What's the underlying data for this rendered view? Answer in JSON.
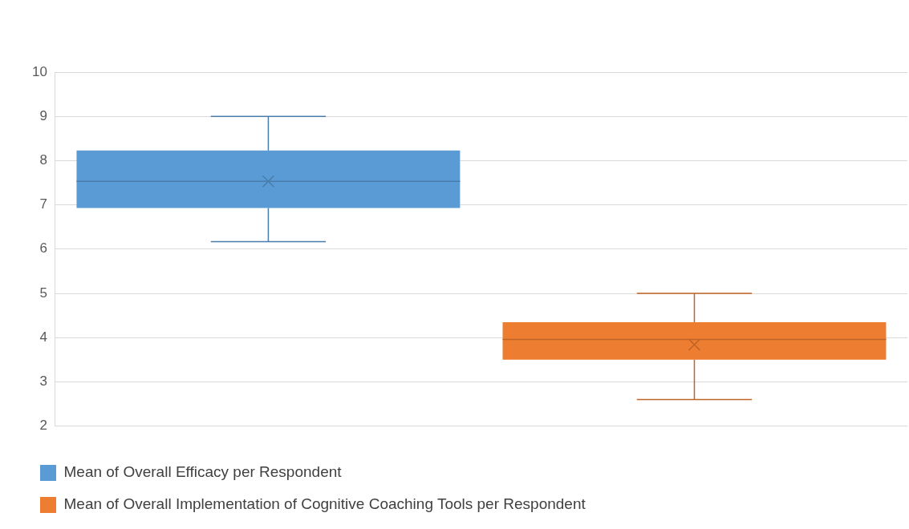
{
  "chart_data": {
    "type": "box",
    "categories": [
      null,
      null
    ],
    "series": [
      {
        "name": "Mean of Overall Efficacy per Respondent",
        "color": "#5b9bd5",
        "boxes": [
          {
            "low": 6.17,
            "q1": 6.93,
            "median": 7.53,
            "q3": 8.23,
            "high": 9,
            "mean": 7.53
          },
          null
        ]
      },
      {
        "name": "Mean of Overall Implementation of Cognitive Coaching Tools per Respondent",
        "color": "#ed7d31",
        "boxes": [
          null,
          {
            "low": 2.6,
            "q1": 3.5,
            "median": 3.96,
            "q3": 4.35,
            "high": 5,
            "mean": 3.84
          }
        ]
      }
    ],
    "ylim": [
      2,
      10
    ],
    "yticks": [
      2,
      3,
      4,
      5,
      6,
      7,
      8,
      9,
      10
    ],
    "grid": "y",
    "legend": "bottom"
  }
}
